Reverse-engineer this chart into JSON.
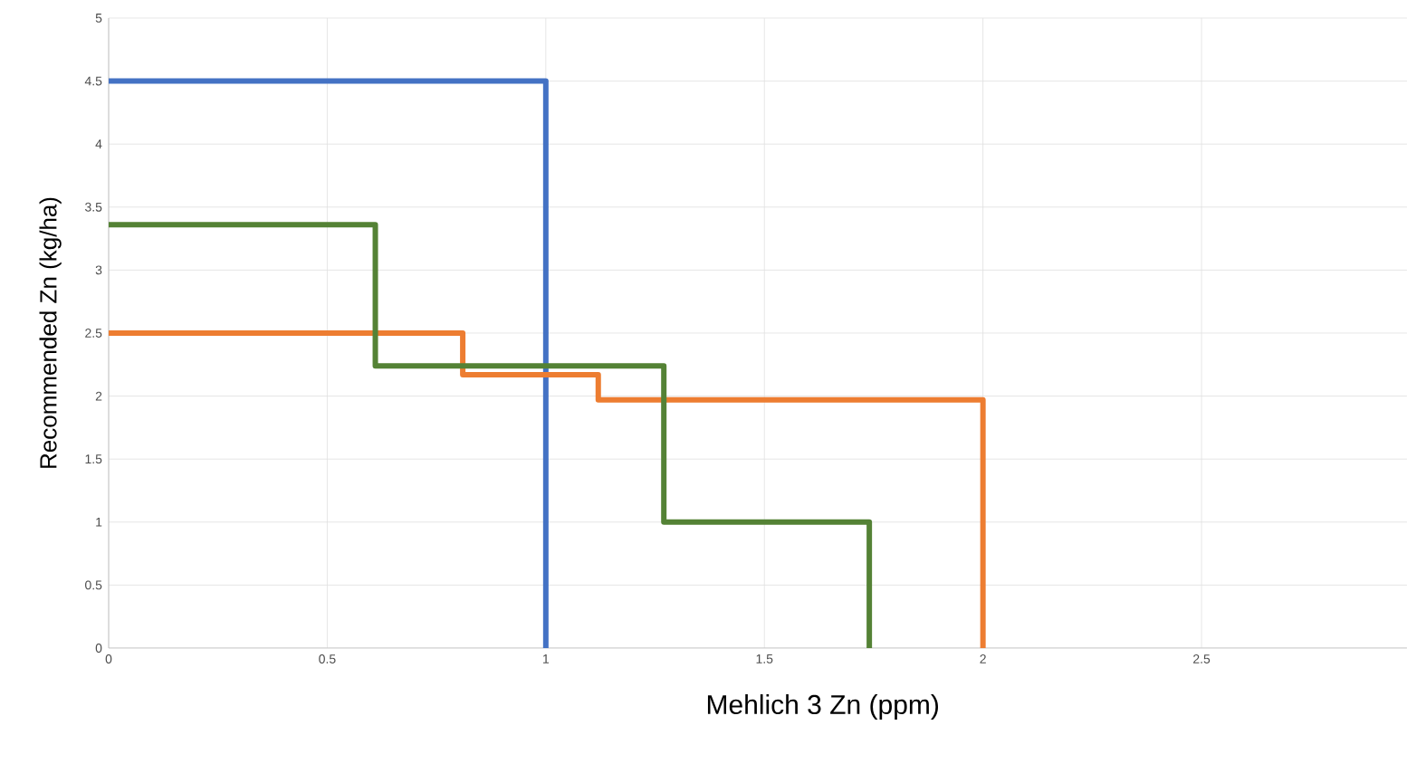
{
  "chart_data": {
    "type": "step",
    "xlabel": "Mehlich 3 Zn (ppm)",
    "ylabel": "Recommended Zn (kg/ha)",
    "xlim": [
      0,
      2.97
    ],
    "ylim": [
      0,
      5
    ],
    "xticks": [
      0,
      0.5,
      1,
      1.5,
      2,
      2.5
    ],
    "yticks": [
      0,
      0.5,
      1,
      1.5,
      2,
      2.5,
      3,
      3.5,
      4,
      4.5,
      5
    ],
    "grid": true,
    "series": [
      {
        "color": "#4472c4",
        "x": [
          0,
          1
        ],
        "values": [
          4.5,
          0
        ]
      },
      {
        "color": "#ed7d31",
        "x": [
          0,
          0.81,
          1.12,
          2.0
        ],
        "values": [
          2.5,
          2.17,
          1.97,
          0
        ]
      },
      {
        "color": "#548235",
        "x": [
          0,
          0.61,
          1.27,
          1.74
        ],
        "values": [
          3.36,
          2.24,
          1.0,
          0
        ]
      }
    ]
  }
}
